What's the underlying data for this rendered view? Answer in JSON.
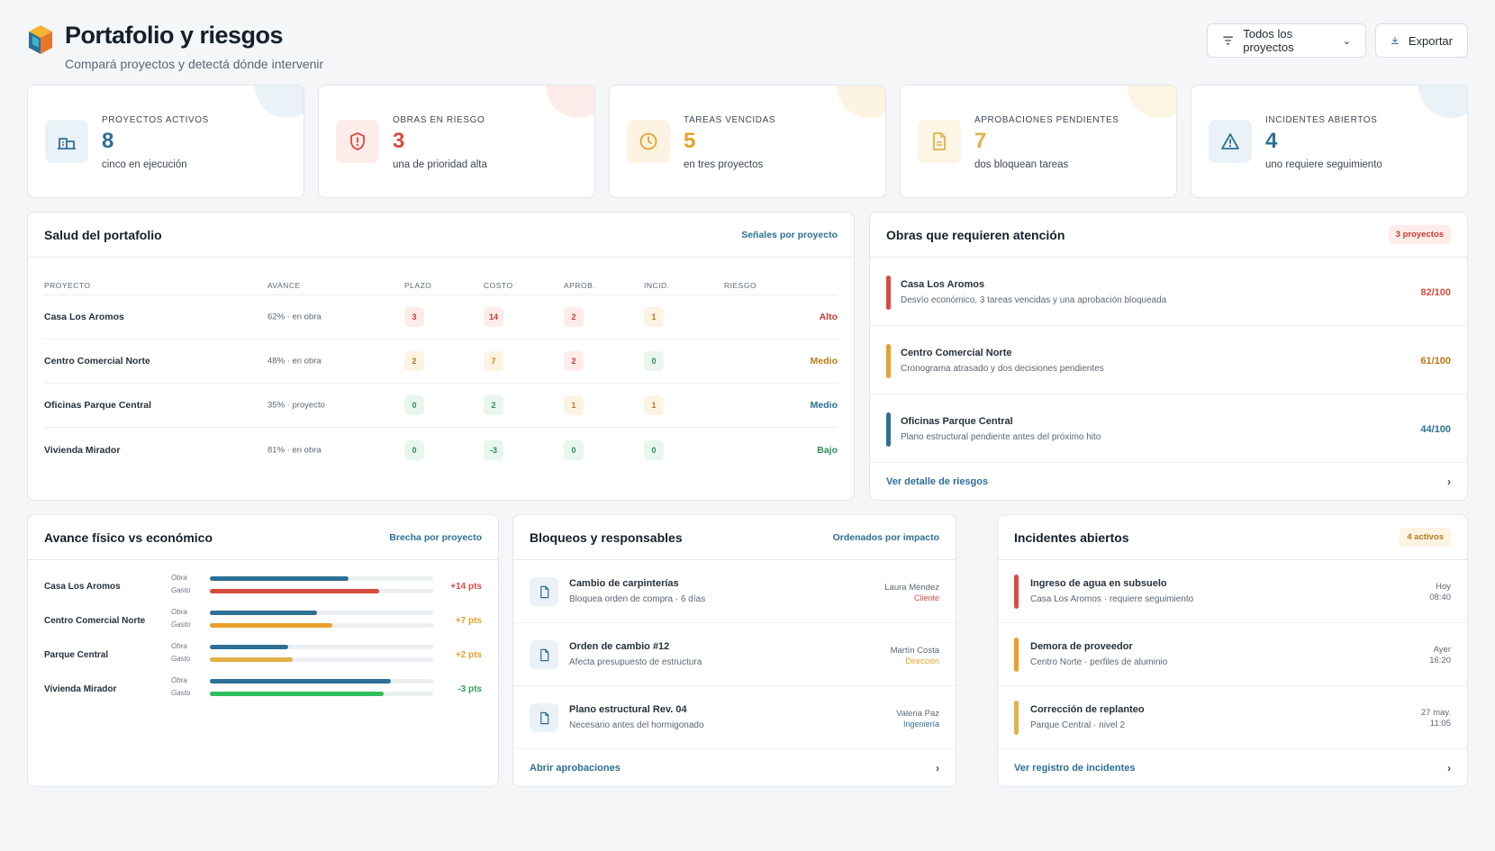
{
  "header": {
    "title": "Portafolio y riesgos",
    "subtitle": "Compará proyectos y detectá dónde intervenir",
    "filter_label": "Todos los proyectos",
    "filter_chevron": "⌄",
    "export_label": "Exportar"
  },
  "kpis": [
    {
      "label": "PROYECTOS ACTIVOS",
      "value": "8",
      "sub": "cinco en ejecución",
      "icon": "building-icon",
      "color": "#2e6f96",
      "tint": "#eaf2f7"
    },
    {
      "label": "OBRAS EN RIESGO",
      "value": "3",
      "sub": "una de prioridad alta",
      "icon": "shield-alert-icon",
      "color": "#d94b3f",
      "tint": "#fdecea"
    },
    {
      "label": "TAREAS VENCIDAS",
      "value": "5",
      "sub": "en tres proyectos",
      "icon": "clock-icon",
      "color": "#e8a02b",
      "tint": "#fdf3e3"
    },
    {
      "label": "APROBACIONES PENDIENTES",
      "value": "7",
      "sub": "dos bloquean tareas",
      "icon": "document-icon",
      "color": "#e0b24a",
      "tint": "#fcf5e3"
    },
    {
      "label": "INCIDENTES ABIERTOS",
      "value": "4",
      "sub": "uno requiere seguimiento",
      "icon": "warning-triangle-icon",
      "color": "#2e6f96",
      "tint": "#eaf2f7"
    }
  ],
  "salud": {
    "title": "Salud del portafolio",
    "link": "Señales por proyecto",
    "columns": [
      "PROYECTO",
      "AVANCE",
      "PLAZO",
      "COSTO",
      "APROB.",
      "INCID.",
      "RIESGO"
    ],
    "rows": [
      {
        "name": "Casa Los Aromos",
        "avance": "62% · en obra",
        "plazo": "3",
        "costo": "14",
        "aprob": "2",
        "incid": "1",
        "riesgo": "Alto",
        "tones": [
          "red",
          "red",
          "red",
          "amber"
        ],
        "risk_tone": "red"
      },
      {
        "name": "Centro Comercial Norte",
        "avance": "48% · en obra",
        "plazo": "2",
        "costo": "7",
        "aprob": "2",
        "incid": "0",
        "riesgo": "Medio",
        "tones": [
          "amber",
          "amber",
          "red",
          "green"
        ],
        "risk_tone": "amber"
      },
      {
        "name": "Oficinas Parque Central",
        "avance": "35% · proyecto",
        "plazo": "0",
        "costo": "2",
        "aprob": "1",
        "incid": "1",
        "riesgo": "Medio",
        "tones": [
          "green",
          "green",
          "amber",
          "amber"
        ],
        "risk_tone": "blue"
      },
      {
        "name": "Vivienda Mirador",
        "avance": "81% · en obra",
        "plazo": "0",
        "costo": "-3",
        "aprob": "0",
        "incid": "0",
        "riesgo": "Bajo",
        "tones": [
          "green",
          "green",
          "green",
          "green"
        ],
        "risk_tone": "green"
      }
    ]
  },
  "obras": {
    "title": "Obras que requieren atención",
    "badge": "3 proyectos",
    "items": [
      {
        "name": "Casa Los Aromos",
        "desc": "Desvío económico, 3 tareas vencidas y una aprobación bloqueada",
        "score": "82/100",
        "color": "#d94b3f"
      },
      {
        "name": "Centro Comercial Norte",
        "desc": "Cronograma atrasado y dos decisiones pendientes",
        "score": "61/100",
        "color": "#e8a02b"
      },
      {
        "name": "Oficinas Parque Central",
        "desc": "Plano estructural pendiente antes del próximo hito",
        "score": "44/100",
        "color": "#2e6f96"
      }
    ],
    "footer": "Ver detalle de riesgos",
    "chevron": "›"
  },
  "avance": {
    "title": "Avance físico vs económico",
    "link": "Brecha por proyecto",
    "obra_label": "Obra",
    "gasto_label": "Gasto",
    "rows": [
      {
        "name": "Casa Los Aromos",
        "obra": 0.62,
        "gasto": 0.76,
        "gap": "+14 pts",
        "gap_color": "#d94b3f",
        "gasto_color": "#d94b3f"
      },
      {
        "name": "Centro Comercial Norte",
        "obra": 0.48,
        "gasto": 0.55,
        "gap": "+7 pts",
        "gap_color": "#e8a02b",
        "gasto_color": "#e8a02b"
      },
      {
        "name": "Parque Central",
        "obra": 0.35,
        "gasto": 0.37,
        "gap": "+2 pts",
        "gap_color": "#e8a02b",
        "gasto_color": "#e0b24a"
      },
      {
        "name": "Vivienda Mirador",
        "obra": 0.81,
        "gasto": 0.78,
        "gap": "-3 pts",
        "gap_color": "#2fa35a",
        "gasto_color": "#2fbf5f"
      }
    ],
    "obra_color": "#2e6f96"
  },
  "bloqueos": {
    "title": "Bloqueos y responsables",
    "link": "Ordenados por impacto",
    "items": [
      {
        "name": "Cambio de carpinterías",
        "desc": "Bloquea orden de compra · 6 días",
        "who": "Laura Méndez",
        "role": "Cliente",
        "role_color": "#d94b3f"
      },
      {
        "name": "Orden de cambio #12",
        "desc": "Afecta presupuesto de estructura",
        "who": "Martín Costa",
        "role": "Dirección",
        "role_color": "#e8a02b"
      },
      {
        "name": "Plano estructural Rev. 04",
        "desc": "Necesario antes del hormigonado",
        "who": "Valeria Paz",
        "role": "Ingeniería",
        "role_color": "#2e6f96"
      }
    ],
    "footer": "Abrir aprobaciones",
    "chevron": "›"
  },
  "incidentes": {
    "title": "Incidentes abiertos",
    "badge": "4 activos",
    "items": [
      {
        "name": "Ingreso de agua en subsuelo",
        "desc": "Casa Los Aromos · requiere seguimiento",
        "time1": "Hoy",
        "time2": "08:40",
        "color": "#d94b3f"
      },
      {
        "name": "Demora de proveedor",
        "desc": "Centro Norte · perfiles de aluminio",
        "time1": "Ayer",
        "time2": "16:20",
        "color": "#e8a02b"
      },
      {
        "name": "Corrección de replanteo",
        "desc": "Parque Central · nivel 2",
        "time1": "27 may.",
        "time2": "11:05",
        "color": "#e0b24a"
      }
    ],
    "footer": "Ver registro de incidentes",
    "chevron": "›"
  }
}
